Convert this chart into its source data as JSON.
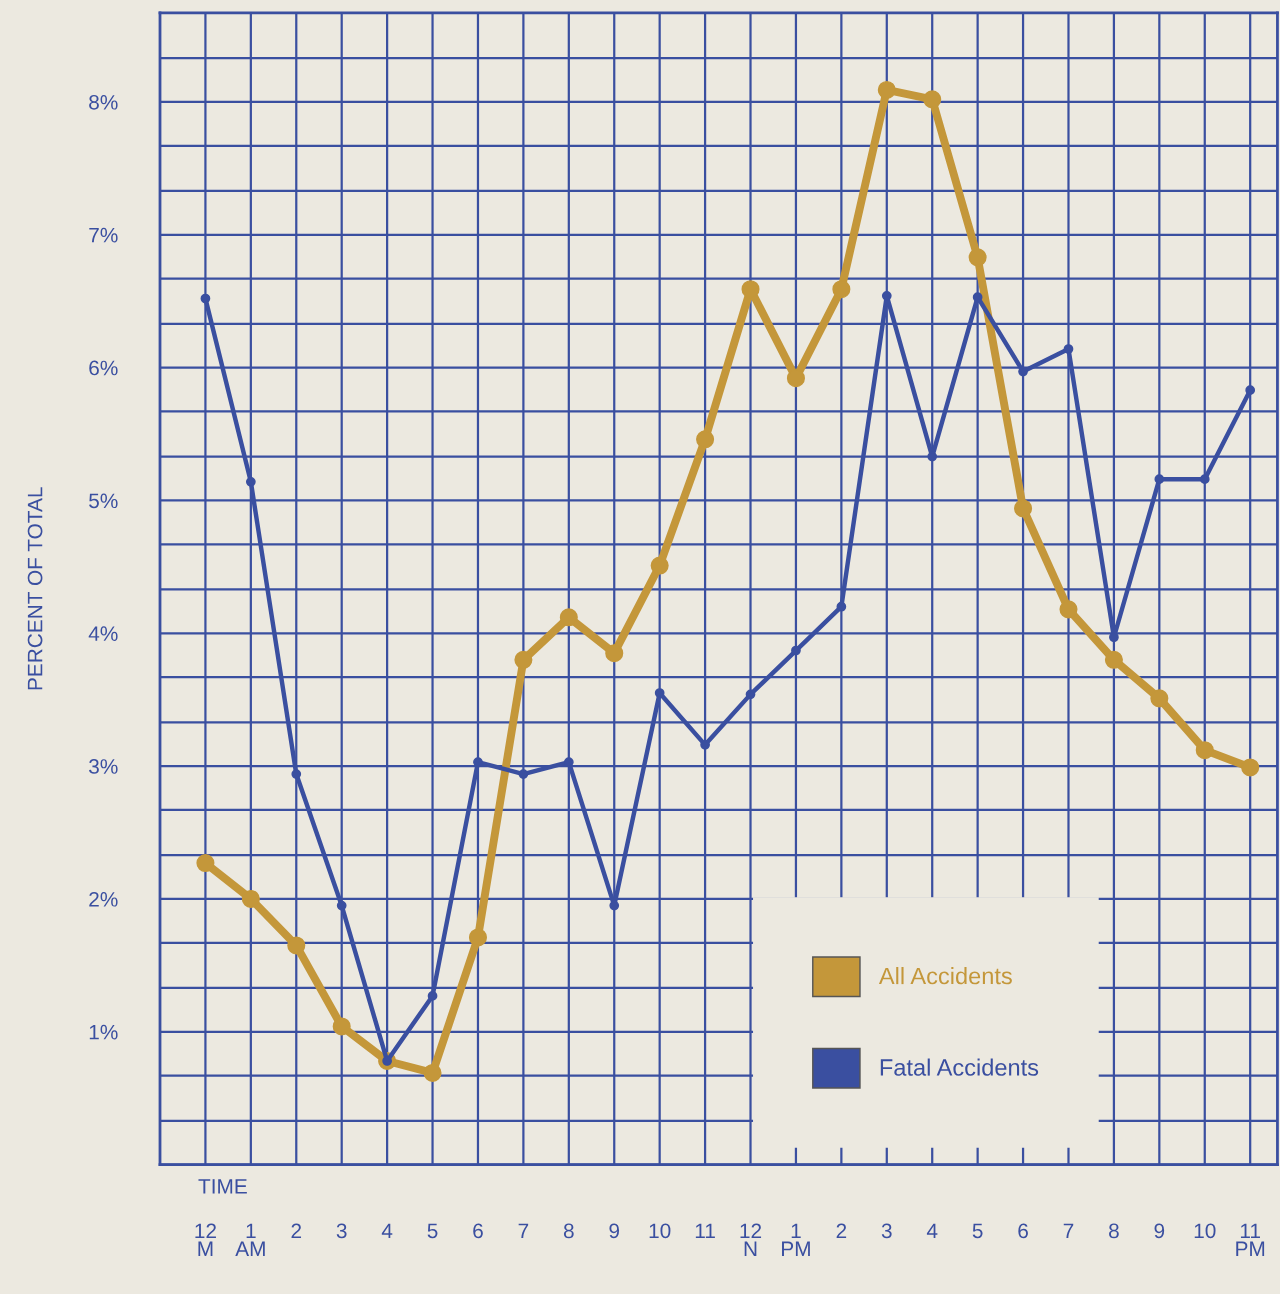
{
  "chart_data": {
    "type": "line",
    "xlabel": "TIME",
    "ylabel": "PERCENT OF TOTAL",
    "categories": [
      "12\nM",
      "1\nAM",
      "2",
      "3",
      "4",
      "5",
      "6",
      "7",
      "8",
      "9",
      "10",
      "11",
      "12\nN",
      "1\nPM",
      "2",
      "3",
      "4",
      "5",
      "6",
      "7",
      "8",
      "9",
      "10",
      "11\nPM"
    ],
    "series": [
      {
        "name": "All Accidents",
        "color": "#c4973a",
        "values": [
          2.27,
          2.0,
          1.65,
          1.04,
          0.78,
          0.69,
          1.71,
          3.8,
          4.12,
          3.85,
          4.51,
          5.46,
          6.59,
          5.92,
          6.59,
          8.09,
          8.02,
          6.83,
          4.94,
          4.18,
          3.8,
          3.51,
          3.12,
          2.99
        ]
      },
      {
        "name": "Fatal Accidents",
        "color": "#3a4fa0",
        "values": [
          6.52,
          5.14,
          2.94,
          1.95,
          0.78,
          1.27,
          3.03,
          2.94,
          3.03,
          1.95,
          3.55,
          3.16,
          3.54,
          3.87,
          4.2,
          6.54,
          5.33,
          6.53,
          5.97,
          6.14,
          3.97,
          5.16,
          5.16,
          5.83
        ]
      }
    ],
    "ylim": [
      0,
      8.67
    ],
    "yticks": [
      {
        "value": 0,
        "label": null
      },
      {
        "value": 0.33,
        "label": null
      },
      {
        "value": 0.67,
        "label": null
      },
      {
        "value": 1,
        "label": "1%"
      },
      {
        "value": 1.33,
        "label": null
      },
      {
        "value": 1.67,
        "label": null
      },
      {
        "value": 2,
        "label": "2%"
      },
      {
        "value": 2.33,
        "label": null
      },
      {
        "value": 2.67,
        "label": null
      },
      {
        "value": 3,
        "label": "3%"
      },
      {
        "value": 3.33,
        "label": null
      },
      {
        "value": 3.67,
        "label": null
      },
      {
        "value": 4,
        "label": "4%"
      },
      {
        "value": 4.33,
        "label": null
      },
      {
        "value": 4.67,
        "label": null
      },
      {
        "value": 5,
        "label": "5%"
      },
      {
        "value": 5.33,
        "label": null
      },
      {
        "value": 5.67,
        "label": null
      },
      {
        "value": 6,
        "label": "6%"
      },
      {
        "value": 6.33,
        "label": null
      },
      {
        "value": 6.67,
        "label": null
      },
      {
        "value": 7,
        "label": "7%"
      },
      {
        "value": 7.33,
        "label": null
      },
      {
        "value": 7.67,
        "label": null
      },
      {
        "value": 8,
        "label": "8%"
      },
      {
        "value": 8.33,
        "label": null
      },
      {
        "value": 8.67,
        "label": null
      }
    ],
    "grid": true,
    "legend": "bottom right",
    "marker": "circle",
    "line_style": "solid"
  }
}
